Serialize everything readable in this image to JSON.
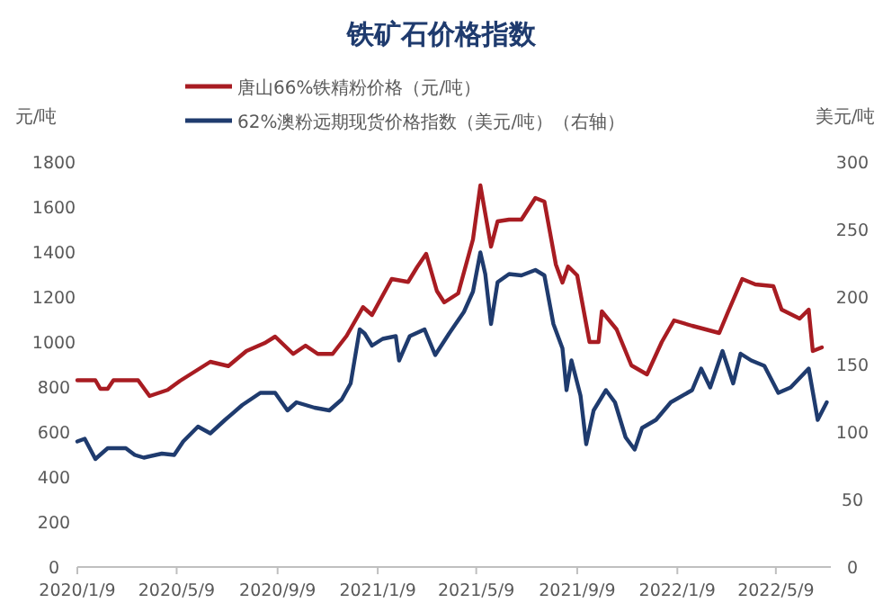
{
  "chart_data": {
    "type": "line",
    "title": "铁矿石价格指数",
    "ylabel": "元/吨",
    "y2label": "美元/吨",
    "xlim": [
      "2020-01-09",
      "2022-07-15"
    ],
    "xticks": [
      {
        "value": "2020-01-09",
        "label": "2020/1/9"
      },
      {
        "value": "2020-05-09",
        "label": "2020/5/9"
      },
      {
        "value": "2020-09-09",
        "label": "2020/9/9"
      },
      {
        "value": "2021-01-09",
        "label": "2021/1/9"
      },
      {
        "value": "2021-05-09",
        "label": "2021/5/9"
      },
      {
        "value": "2021-09-09",
        "label": "2021/9/9"
      },
      {
        "value": "2022-01-09",
        "label": "2022/1/9"
      },
      {
        "value": "2022-05-09",
        "label": "2022/5/9"
      }
    ],
    "ylim": [
      0,
      1800
    ],
    "yticks": [
      0,
      200,
      400,
      600,
      800,
      1000,
      1200,
      1400,
      1600,
      1800
    ],
    "y2lim": [
      0,
      300
    ],
    "y2ticks": [
      0,
      50,
      100,
      150,
      200,
      250,
      300
    ],
    "legend": "top",
    "series": [
      {
        "name": "唐山66%铁精粉价格（元/吨）",
        "color": "#a81c22",
        "x": [
          "2020-01-09",
          "2020-01-31",
          "2020-02-06",
          "2020-02-15",
          "2020-02-22",
          "2020-03-23",
          "2020-04-06",
          "2020-04-28",
          "2020-05-13",
          "2020-06-19",
          "2020-07-11",
          "2020-08-02",
          "2020-08-24",
          "2020-09-06",
          "2020-09-28",
          "2020-10-13",
          "2020-10-28",
          "2020-11-15",
          "2020-12-02",
          "2020-12-22",
          "2021-01-02",
          "2021-01-26",
          "2021-02-15",
          "2021-02-26",
          "2021-03-09",
          "2021-03-22",
          "2021-03-31",
          "2021-04-17",
          "2021-05-05",
          "2021-05-14",
          "2021-05-27",
          "2021-06-04",
          "2021-06-18",
          "2021-07-03",
          "2021-07-20",
          "2021-07-31",
          "2021-08-14",
          "2021-08-22",
          "2021-08-29",
          "2021-09-09",
          "2021-09-24",
          "2021-10-05",
          "2021-10-09",
          "2021-10-27",
          "2021-11-14",
          "2021-12-03",
          "2021-12-21",
          "2022-01-05",
          "2022-01-27",
          "2022-03-01",
          "2022-03-12",
          "2022-03-29",
          "2022-04-14",
          "2022-05-06",
          "2022-05-16",
          "2022-06-07",
          "2022-06-18",
          "2022-06-23",
          "2022-07-04"
        ],
        "values": [
          830,
          830,
          792,
          792,
          830,
          830,
          760,
          787,
          827,
          912,
          893,
          960,
          995,
          1024,
          947,
          984,
          947,
          947,
          1027,
          1155,
          1120,
          1280,
          1267,
          1333,
          1392,
          1227,
          1176,
          1216,
          1456,
          1696,
          1424,
          1536,
          1544,
          1544,
          1640,
          1624,
          1344,
          1264,
          1336,
          1296,
          1000,
          1000,
          1136,
          1056,
          896,
          856,
          1000,
          1096,
          1072,
          1040,
          1136,
          1280,
          1256,
          1248,
          1144,
          1104,
          1144,
          960,
          976
        ]
      },
      {
        "name": "62%澳粉远期现货价格指数（美元/吨）（右轴）",
        "color": "#1f3b6e",
        "axis": "y2",
        "x": [
          "2020-01-09",
          "2020-01-18",
          "2020-01-31",
          "2020-02-15",
          "2020-03-08",
          "2020-03-19",
          "2020-03-30",
          "2020-04-21",
          "2020-05-06",
          "2020-05-17",
          "2020-06-04",
          "2020-06-19",
          "2020-07-07",
          "2020-07-28",
          "2020-08-19",
          "2020-09-06",
          "2020-09-21",
          "2020-10-02",
          "2020-10-24",
          "2020-11-11",
          "2020-11-26",
          "2020-12-07",
          "2020-12-18",
          "2020-12-24",
          "2021-01-02",
          "2021-01-15",
          "2021-01-31",
          "2021-02-04",
          "2021-02-17",
          "2021-03-07",
          "2021-03-20",
          "2021-04-06",
          "2021-04-24",
          "2021-05-05",
          "2021-05-14",
          "2021-05-20",
          "2021-05-27",
          "2021-06-04",
          "2021-06-18",
          "2021-07-03",
          "2021-07-20",
          "2021-07-31",
          "2021-08-11",
          "2021-08-22",
          "2021-08-27",
          "2021-09-02",
          "2021-09-13",
          "2021-09-20",
          "2021-09-29",
          "2021-10-05",
          "2021-10-14",
          "2021-10-25",
          "2021-11-07",
          "2021-11-18",
          "2021-11-27",
          "2021-12-14",
          "2022-01-01",
          "2022-01-27",
          "2022-02-07",
          "2022-02-18",
          "2022-03-05",
          "2022-03-18",
          "2022-03-27",
          "2022-04-09",
          "2022-04-25",
          "2022-05-12",
          "2022-05-27",
          "2022-06-18",
          "2022-06-29",
          "2022-07-10"
        ],
        "values": [
          93,
          95,
          80,
          88,
          88,
          83,
          81,
          84,
          83,
          93,
          104,
          99,
          109,
          120,
          129,
          129,
          116,
          122,
          118,
          116,
          124,
          136,
          176,
          173,
          164,
          169,
          171,
          153,
          171,
          176,
          157,
          173,
          189,
          204,
          233,
          217,
          180,
          211,
          217,
          216,
          220,
          216,
          180,
          162,
          131,
          153,
          127,
          91,
          116,
          122,
          131,
          122,
          96,
          87,
          103,
          109,
          122,
          131,
          147,
          133,
          160,
          136,
          158,
          153,
          149,
          129,
          133,
          147,
          109,
          122
        ]
      }
    ]
  }
}
